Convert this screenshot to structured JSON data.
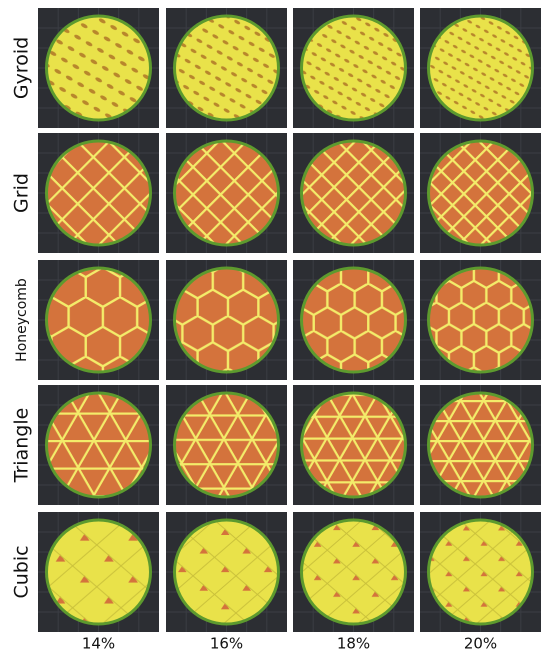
{
  "row_labels": [
    "Gyroid",
    "Grid",
    "Honeycomb",
    "Triangle",
    "Cubic"
  ],
  "column_labels": [
    "14%",
    "16%",
    "18%",
    "20%"
  ]
}
